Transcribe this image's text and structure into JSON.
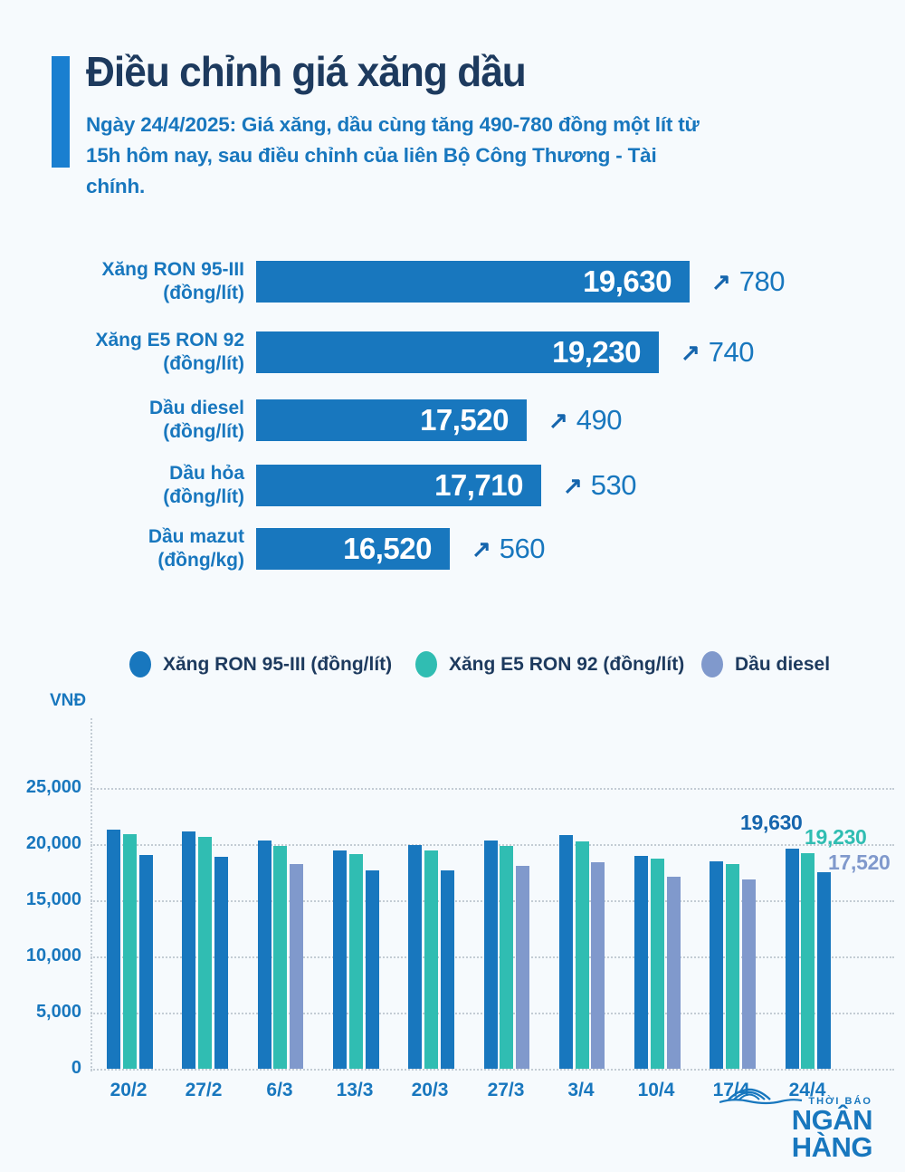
{
  "header": {
    "title": "Điều chỉnh giá xăng dầu",
    "subtitle_line1": "Ngày 24/4/2025: Giá xăng, dầu cùng tăng 490-780 đồng một lít từ",
    "subtitle_line2": "15h hôm nay, sau điều chỉnh của liên Bộ Công Thương - Tài chính."
  },
  "colors": {
    "primary_blue": "#1877be",
    "navy": "#1d3a5e",
    "teal": "#30bdb2",
    "lavender": "#8099cc",
    "accent_bar": "#1a7fd0",
    "dark_value_blue": "#1565ad"
  },
  "chart_data": [
    {
      "type": "bar",
      "orientation": "horizontal",
      "bar_color": "#1877be",
      "arrow_glyph": "↗",
      "rows": [
        {
          "label_line1": "Xăng RON 95-III",
          "label_line2": "(đồng/lít)",
          "value": 19630,
          "value_label": "19,630",
          "change": 780,
          "change_label": "780"
        },
        {
          "label_line1": "Xăng E5 RON 92",
          "label_line2": "(đồng/lít)",
          "value": 19230,
          "value_label": "19,230",
          "change": 740,
          "change_label": "740"
        },
        {
          "label_line1": "Dầu diesel",
          "label_line2": "(đồng/lít)",
          "value": 17520,
          "value_label": "17,520",
          "change": 490,
          "change_label": "490"
        },
        {
          "label_line1": "Dầu hỏa",
          "label_line2": "(đồng/lít)",
          "value": 17710,
          "value_label": "17,710",
          "change": 530,
          "change_label": "530"
        },
        {
          "label_line1": "Dầu mazut",
          "label_line2": "(đồng/kg)",
          "value": 16520,
          "value_label": "16,520",
          "change": 560,
          "change_label": "560"
        }
      ]
    },
    {
      "type": "bar",
      "orientation": "vertical",
      "unit_label": "VNĐ",
      "ylim": [
        0,
        25000
      ],
      "y_ticks": [
        {
          "value": 25000,
          "label": "25,000"
        },
        {
          "value": 20000,
          "label": "20,000"
        },
        {
          "value": 15000,
          "label": "15,000"
        },
        {
          "value": 10000,
          "label": "10,000"
        },
        {
          "value": 5000,
          "label": "5,000"
        },
        {
          "value": 0,
          "label": "0"
        }
      ],
      "grid": true,
      "legend_position": "top",
      "legend": [
        {
          "label": "Xăng RON 95-III (đồng/lít)",
          "color": "#1877be"
        },
        {
          "label": "Xăng E5 RON 92 (đồng/lít)",
          "color": "#30bdb2"
        },
        {
          "label": "Dầu diesel",
          "color": "#8099cc"
        }
      ],
      "categories": [
        "20/2",
        "27/2",
        "6/3",
        "13/3",
        "20/3",
        "27/3",
        "3/4",
        "10/4",
        "17/4",
        "24/4"
      ],
      "series": [
        {
          "name": "Xăng RON 95-III (đồng/lít)",
          "color": "#1877be",
          "values": [
            21330,
            21110,
            20330,
            19420,
            19950,
            20310,
            20830,
            18980,
            18500,
            19630
          ]
        },
        {
          "name": "Xăng E5 RON 92 (đồng/lít)",
          "color": "#30bdb2",
          "values": [
            20860,
            20650,
            19840,
            19080,
            19440,
            19810,
            20280,
            18700,
            18250,
            19230
          ]
        },
        {
          "name": "Dầu diesel",
          "color": "#8099cc",
          "values": [
            19060,
            18840,
            18190,
            17690,
            17690,
            18060,
            18390,
            17080,
            16830,
            17520
          ],
          "bar_colors": [
            "#1877be",
            "#1877be",
            "#8099cc",
            "#1877be",
            "#1877be",
            "#8099cc",
            "#8099cc",
            "#8099cc",
            "#8099cc",
            "#1877be"
          ]
        }
      ],
      "end_labels": [
        {
          "text": "19,630",
          "color": "#1565ad"
        },
        {
          "text": "19,230",
          "color": "#30bdb2"
        },
        {
          "text": "17,520",
          "color": "#8099cc"
        }
      ]
    }
  ],
  "footer": {
    "logo_small": "THỜI BÁO",
    "logo_main": "NGÂN HÀNG"
  }
}
